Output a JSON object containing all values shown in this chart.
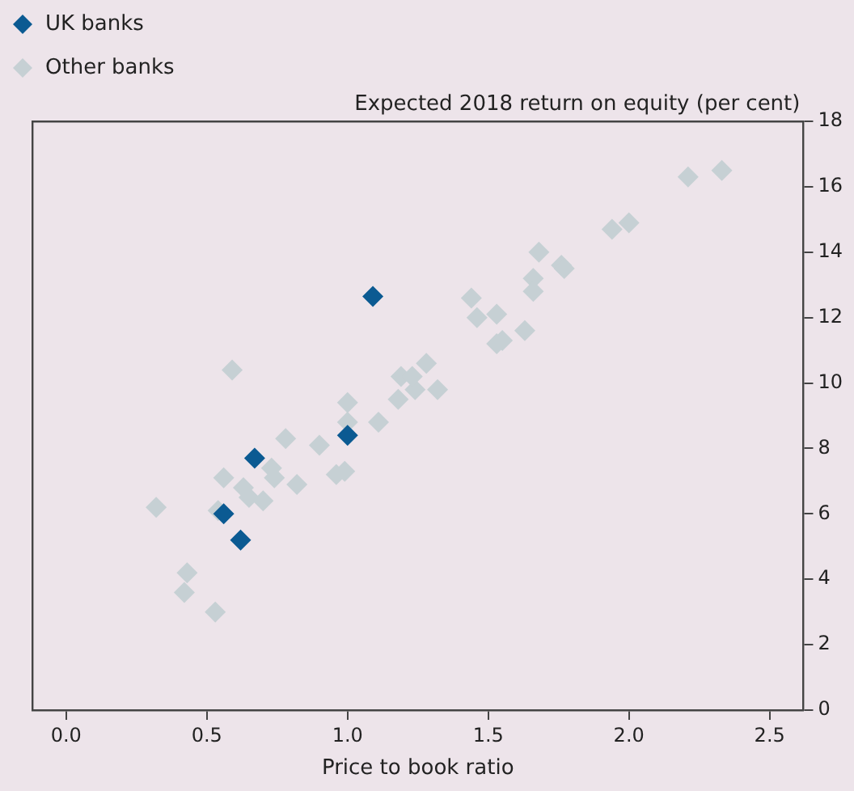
{
  "chart_data": {
    "type": "scatter",
    "xlabel": "Price to book ratio",
    "ylabel": "Expected 2018 return on equity (per cent)",
    "xlim": [
      -0.12,
      2.62
    ],
    "xticks": [
      {
        "value": 0,
        "label": "0.0"
      },
      {
        "value": 0.5,
        "label": "0.5"
      },
      {
        "value": 1,
        "label": "1.0"
      },
      {
        "value": 1.5,
        "label": "1.5"
      },
      {
        "value": 2,
        "label": "2.0"
      },
      {
        "value": 2.5,
        "label": "2.5"
      }
    ],
    "ylim": [
      0,
      18
    ],
    "yticks": [
      0,
      2,
      4,
      6,
      8,
      10,
      12,
      14,
      16,
      18
    ],
    "grid": false,
    "legend": "top left",
    "marker": "diamond",
    "series": [
      {
        "name": "UK banks",
        "color": "#0b5a92",
        "x": [
          1.09,
          1.0,
          0.67,
          0.56,
          0.62
        ],
        "values": [
          12.65,
          8.4,
          7.7,
          6.0,
          5.2
        ]
      },
      {
        "name": "Other banks",
        "color": "#c6d0d4",
        "x": [
          0.32,
          0.59,
          0.56,
          0.43,
          0.42,
          0.53,
          0.54,
          0.63,
          0.65,
          0.7,
          0.73,
          0.74,
          0.78,
          0.82,
          0.9,
          0.96,
          0.99,
          1.0,
          1.0,
          1.11,
          1.18,
          1.19,
          1.24,
          1.23,
          1.28,
          1.32,
          1.44,
          1.46,
          1.53,
          1.53,
          1.55,
          1.63,
          1.66,
          1.66,
          1.68,
          1.76,
          1.77,
          1.94,
          2.0,
          2.21,
          2.33
        ],
        "values": [
          6.2,
          10.4,
          7.1,
          4.2,
          3.6,
          3.0,
          6.1,
          6.8,
          6.5,
          6.4,
          7.4,
          7.1,
          8.3,
          6.9,
          8.1,
          7.2,
          7.3,
          9.4,
          8.8,
          8.8,
          9.5,
          10.2,
          9.8,
          10.2,
          10.6,
          9.8,
          12.6,
          12.0,
          12.1,
          11.2,
          11.3,
          11.6,
          13.2,
          12.8,
          14.0,
          13.6,
          13.5,
          14.7,
          14.9,
          16.3,
          16.5
        ]
      }
    ]
  }
}
